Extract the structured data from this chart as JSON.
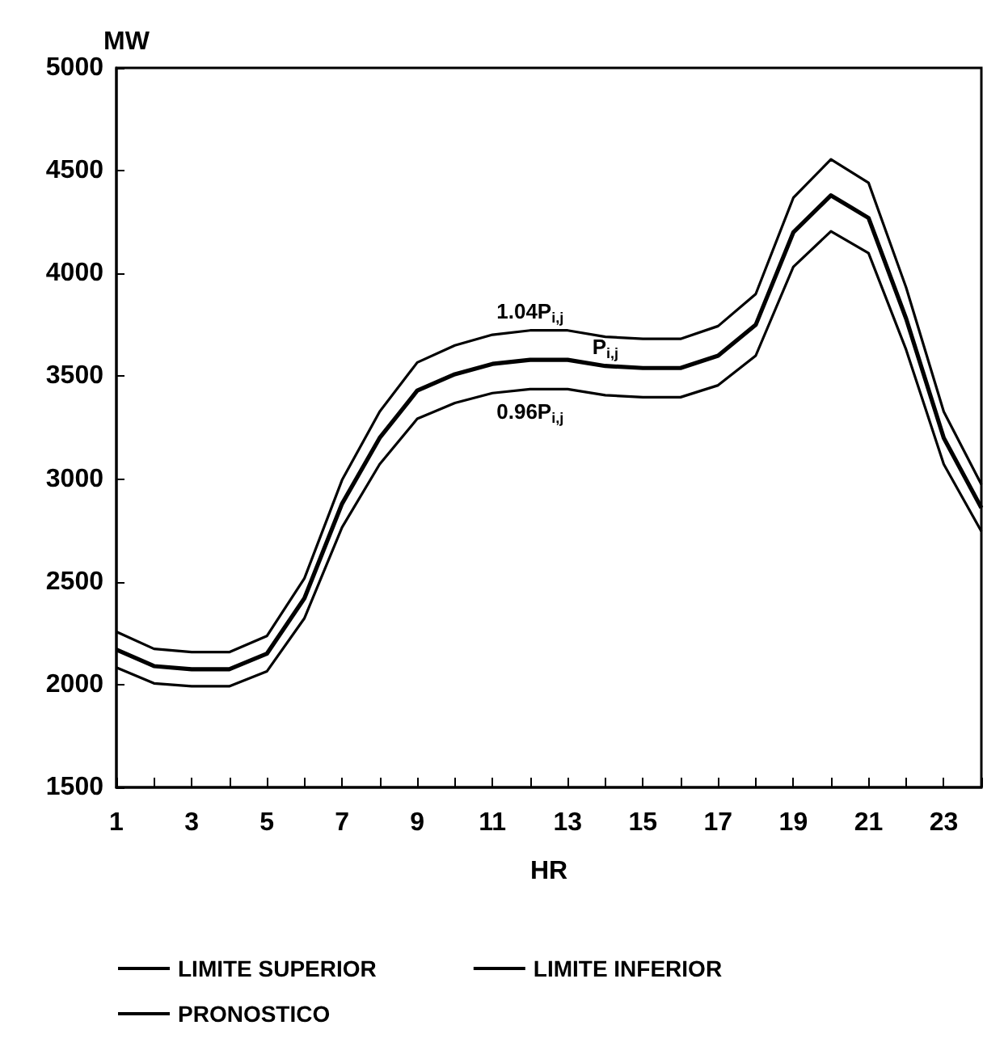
{
  "chart_data": {
    "type": "line",
    "xlabel": "HR",
    "ylabel": "MW",
    "x": [
      1,
      2,
      3,
      4,
      5,
      6,
      7,
      8,
      9,
      10,
      11,
      12,
      13,
      14,
      15,
      16,
      17,
      18,
      19,
      20,
      21,
      22,
      23,
      24
    ],
    "series": [
      {
        "name": "LIMITE SUPERIOR",
        "color": "#000000",
        "values": [
          2257,
          2174,
          2158,
          2158,
          2236,
          2517,
          2995,
          3328,
          3567,
          3650,
          3702,
          3723,
          3723,
          3692,
          3682,
          3682,
          3744,
          3900,
          4368,
          4555,
          4441,
          3931,
          3328,
          2974
        ]
      },
      {
        "name": "LIMITE INFERIOR",
        "color": "#000000",
        "values": [
          2083,
          2006,
          1992,
          1992,
          2064,
          2323,
          2765,
          3072,
          3293,
          3370,
          3418,
          3437,
          3437,
          3408,
          3398,
          3398,
          3456,
          3600,
          4032,
          4205,
          4099,
          3629,
          3072,
          2746
        ]
      },
      {
        "name": "PRONOSTICO",
        "color": "#000000",
        "values": [
          2170,
          2090,
          2075,
          2075,
          2150,
          2420,
          2880,
          3200,
          3430,
          3510,
          3560,
          3580,
          3580,
          3550,
          3540,
          3540,
          3600,
          3750,
          4200,
          4380,
          4270,
          3780,
          3200,
          2860
        ]
      }
    ],
    "xlim": [
      1,
      24
    ],
    "ylim": [
      1500,
      5000
    ],
    "xticks": [
      1,
      {
        "value": 2,
        "label": null
      },
      3,
      {
        "value": 4,
        "label": null
      },
      5,
      {
        "value": 6,
        "label": null
      },
      7,
      {
        "value": 8,
        "label": null
      },
      9,
      {
        "value": 10,
        "label": null
      },
      11,
      {
        "value": 12,
        "label": null
      },
      13,
      {
        "value": 14,
        "label": null
      },
      15,
      {
        "value": 16,
        "label": null
      },
      17,
      {
        "value": 18,
        "label": null
      },
      19,
      {
        "value": 20,
        "label": null
      },
      21,
      {
        "value": 22,
        "label": null
      },
      23,
      {
        "value": 24,
        "label": null
      }
    ],
    "yticks": [
      1500,
      2000,
      2500,
      3000,
      3500,
      4000,
      4500,
      5000
    ],
    "annotations": [
      "1.04P$_{i,j}$",
      "0.96P$_{i,j}$",
      "P$_{i,j}$"
    ],
    "grid": false,
    "legend": "bottom",
    "marker": "none",
    "line_style": "solid"
  }
}
